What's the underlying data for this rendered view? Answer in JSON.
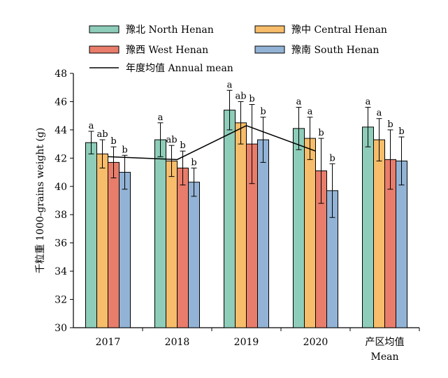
{
  "chart_data": {
    "type": "bar",
    "ylabel": "千粒重 1000-grains weight (g)",
    "ylim": [
      30,
      48
    ],
    "yticks": [
      30,
      32,
      34,
      36,
      38,
      40,
      42,
      44,
      46,
      48
    ],
    "grid": false,
    "legend_position": "top",
    "categories": [
      {
        "label": "2017"
      },
      {
        "label": "2018"
      },
      {
        "label": "2019"
      },
      {
        "label": "2020"
      },
      {
        "label": "产区均值",
        "label2": "Mean"
      }
    ],
    "series": [
      {
        "name": "豫北 North Henan",
        "color": "#8ecdb9",
        "values": [
          43.1,
          43.3,
          45.4,
          44.1,
          44.2
        ],
        "errors": [
          0.8,
          1.2,
          1.4,
          1.5,
          1.4
        ],
        "letters": [
          "a",
          "a",
          "a",
          "a",
          "a"
        ]
      },
      {
        "name": "豫中 Central Henan",
        "color": "#f7bd6a",
        "values": [
          42.3,
          41.8,
          44.5,
          43.4,
          43.3
        ],
        "errors": [
          1.0,
          1.1,
          1.5,
          1.5,
          1.5
        ],
        "letters": [
          "ab",
          "ab",
          "ab",
          "a",
          "a"
        ]
      },
      {
        "name": "豫西 West Henan",
        "color": "#e97d6b",
        "values": [
          41.7,
          41.3,
          43.0,
          41.1,
          41.9
        ],
        "errors": [
          1.1,
          1.2,
          2.8,
          2.3,
          2.1
        ],
        "letters": [
          "b",
          "b",
          "b",
          "b",
          "b"
        ]
      },
      {
        "name": "豫南 South Henan",
        "color": "#93b3d6",
        "values": [
          41.0,
          40.3,
          43.3,
          39.7,
          41.8
        ],
        "errors": [
          1.2,
          1.0,
          1.6,
          1.9,
          1.7
        ],
        "letters": [
          "b",
          "b",
          "b",
          "b",
          "b"
        ]
      }
    ],
    "line_series": {
      "name": "年度均值 Annual mean",
      "color": "#000000",
      "values": [
        42.1,
        41.9,
        44.3,
        42.5
      ]
    }
  }
}
